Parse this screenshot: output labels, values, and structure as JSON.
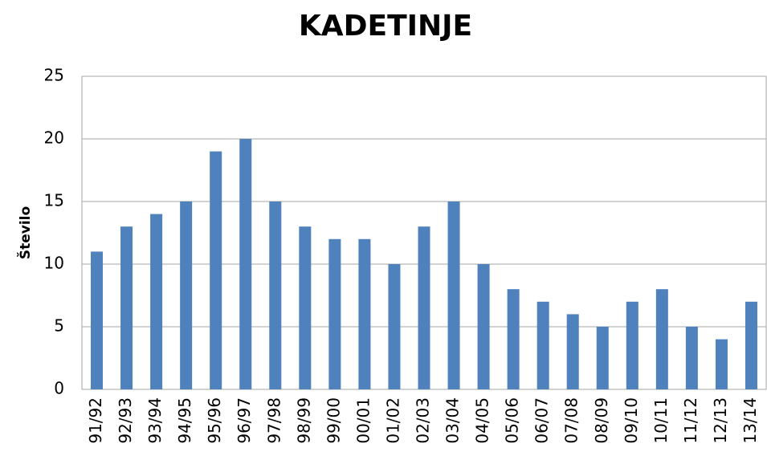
{
  "chart_data": {
    "type": "bar",
    "title": "KADETINJE",
    "y_label": "Število",
    "categories": [
      "91/92",
      "92/93",
      "93/94",
      "94/95",
      "95/96",
      "96/97",
      "97/98",
      "98/99",
      "99/00",
      "00/01",
      "01/02",
      "02/03",
      "03/04",
      "04/05",
      "05/06",
      "06/07",
      "07/08",
      "08/09",
      "09/10",
      "10/11",
      "11/12",
      "12/13",
      "13/14"
    ],
    "values": [
      11,
      13,
      14,
      15,
      19,
      20,
      15,
      13,
      12,
      12,
      10,
      13,
      15,
      10,
      8,
      7,
      6,
      5,
      7,
      8,
      5,
      4,
      7
    ],
    "color": "#4f81bd",
    "ylim": [
      0,
      25
    ],
    "yticks": [
      0,
      5,
      10,
      15,
      20,
      25
    ],
    "grid": true
  }
}
